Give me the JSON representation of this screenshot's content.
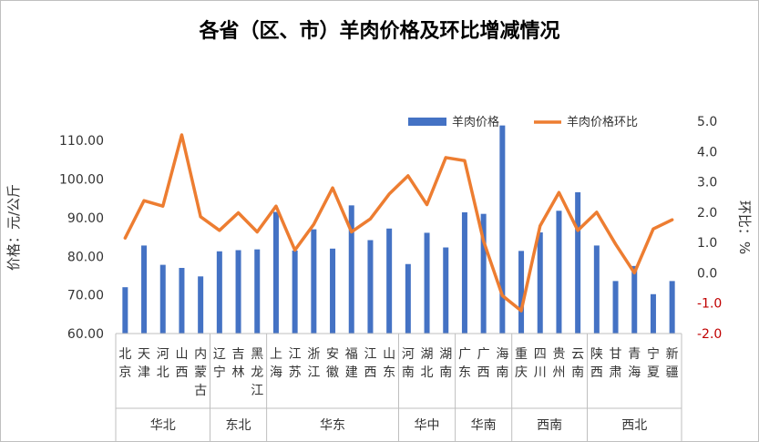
{
  "chart_data": {
    "type": "bar+line",
    "title": "各省（区、市）羊肉价格及环比增减情况",
    "ylabel_left": "价格：元/公斤",
    "ylabel_right": "环比：%",
    "ylim_left": [
      60,
      115
    ],
    "ylim_right": [
      -2.0,
      5.0
    ],
    "yticks_left": [
      "60.00",
      "70.00",
      "80.00",
      "90.00",
      "100.00",
      "110.00"
    ],
    "yticks_right": [
      "-2.0",
      "-1.0",
      "0.0",
      "1.0",
      "2.0",
      "3.0",
      "4.0",
      "5.0"
    ],
    "categories": [
      "北京",
      "天津",
      "河北",
      "山西",
      "内蒙古",
      "辽宁",
      "吉林",
      "黑龙江",
      "上海",
      "江苏",
      "浙江",
      "安徽",
      "福建",
      "江西",
      "山东",
      "河南",
      "湖北",
      "湖南",
      "广东",
      "广西",
      "海南",
      "重庆",
      "四川",
      "贵州",
      "云南",
      "陕西",
      "甘肃",
      "青海",
      "宁夏",
      "新疆"
    ],
    "regions": [
      {
        "name": "华北",
        "count": 5
      },
      {
        "name": "东北",
        "count": 3
      },
      {
        "name": "华东",
        "count": 7
      },
      {
        "name": "华中",
        "count": 3
      },
      {
        "name": "华南",
        "count": 3
      },
      {
        "name": "西南",
        "count": 4
      },
      {
        "name": "西北",
        "count": 5
      }
    ],
    "series": [
      {
        "name": "羊肉价格",
        "type": "bar",
        "axis": "left",
        "color": "#4472c4",
        "values": [
          72.0,
          82.8,
          77.8,
          77.0,
          74.8,
          81.3,
          81.6,
          81.8,
          91.5,
          81.5,
          87.0,
          82.0,
          93.2,
          84.2,
          87.2,
          78.0,
          86.1,
          82.3,
          91.4,
          91.0,
          113.9,
          81.4,
          86.2,
          91.8,
          96.6,
          82.8,
          73.6,
          77.5,
          70.2,
          73.6
        ]
      },
      {
        "name": "羊肉价格环比",
        "type": "line",
        "axis": "right",
        "color": "#ed7d31",
        "values": [
          1.15,
          2.38,
          2.2,
          4.55,
          1.85,
          1.4,
          1.98,
          1.35,
          2.2,
          0.75,
          1.6,
          2.8,
          1.35,
          1.78,
          2.6,
          3.2,
          2.25,
          3.8,
          3.7,
          1.05,
          -0.75,
          -1.25,
          1.55,
          2.65,
          1.4,
          2.0,
          0.95,
          0.0,
          1.45,
          1.75
        ]
      }
    ],
    "legend_position": "top-right",
    "grid": false
  }
}
